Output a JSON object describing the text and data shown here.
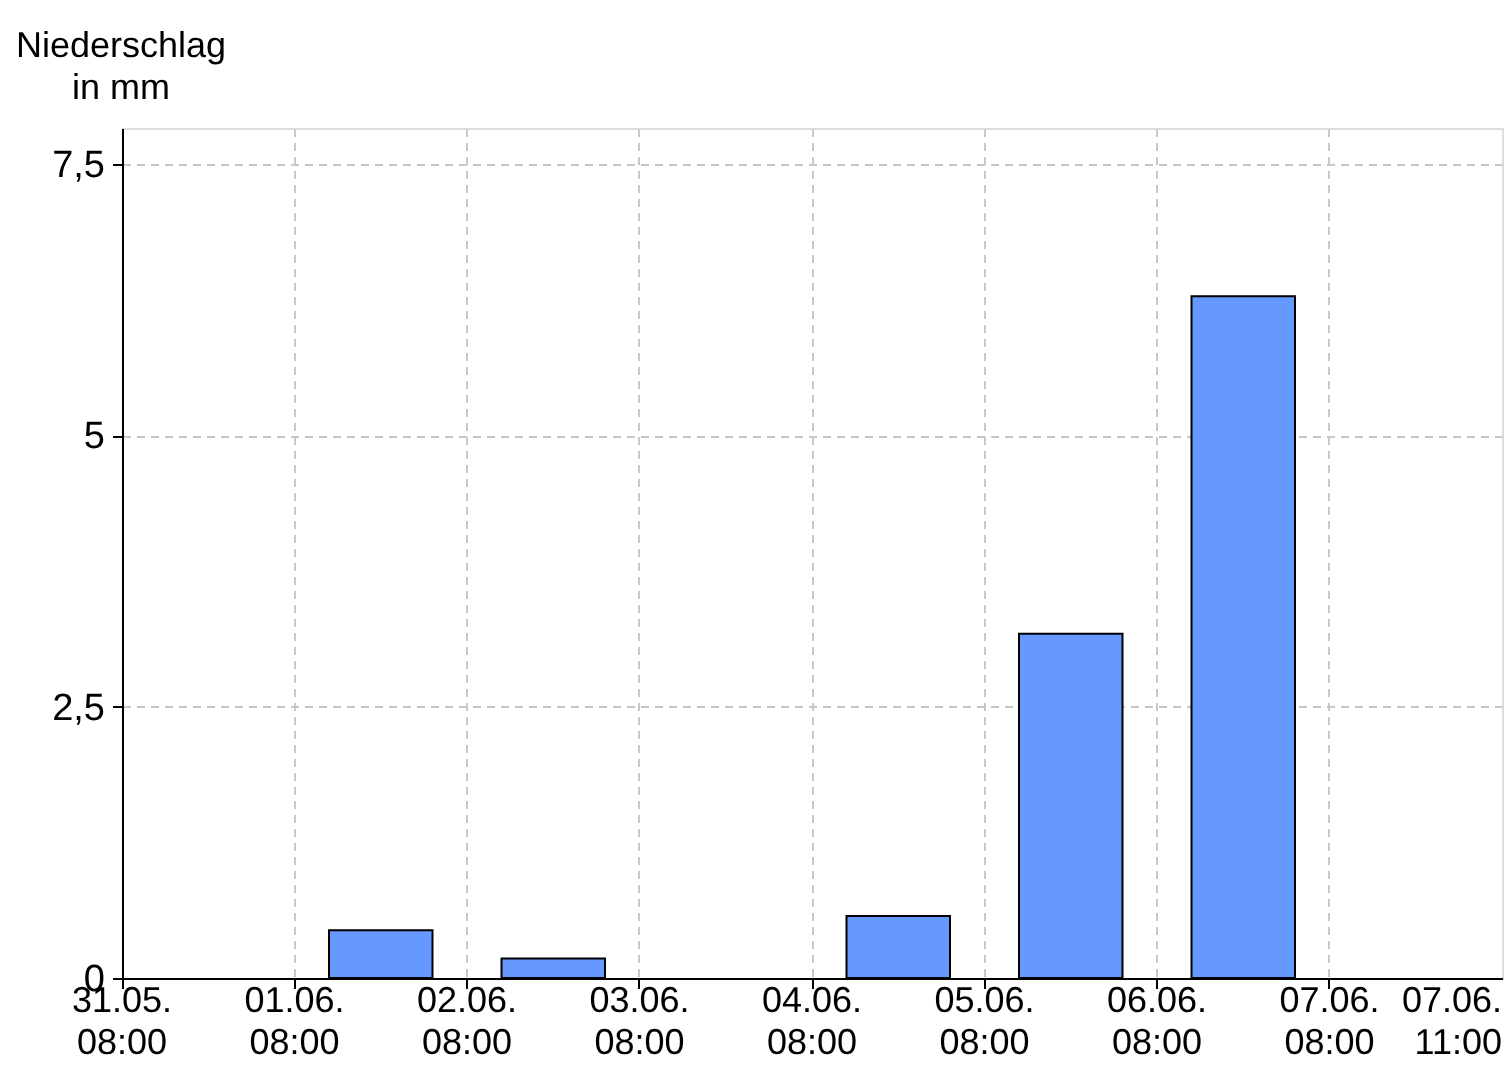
{
  "chart_data": {
    "type": "bar",
    "ylabel": "Niederschlag\nin mm",
    "categories": [
      null,
      null,
      null,
      null,
      null,
      null,
      null,
      null
    ],
    "values": [
      null,
      0.44,
      0.18,
      null,
      0.57,
      3.17,
      6.28,
      null
    ],
    "color": "#6699ff",
    "ylim": [
      0,
      7.83
    ],
    "yticks": [
      0,
      {
        "value": 2.5,
        "label": "2,5"
      },
      5,
      {
        "value": 7.5,
        "label": "7,5"
      }
    ],
    "grid": true,
    "annotations": [
      "31.05.\n08:00",
      "01.06.\n08:00",
      "02.06.\n08:00",
      "03.06.\n08:00",
      "04.06.\n08:00",
      "05.06.\n08:00",
      "06.06.\n08:00",
      "07.06.\n08:00",
      "07.06.\n11:00"
    ]
  }
}
